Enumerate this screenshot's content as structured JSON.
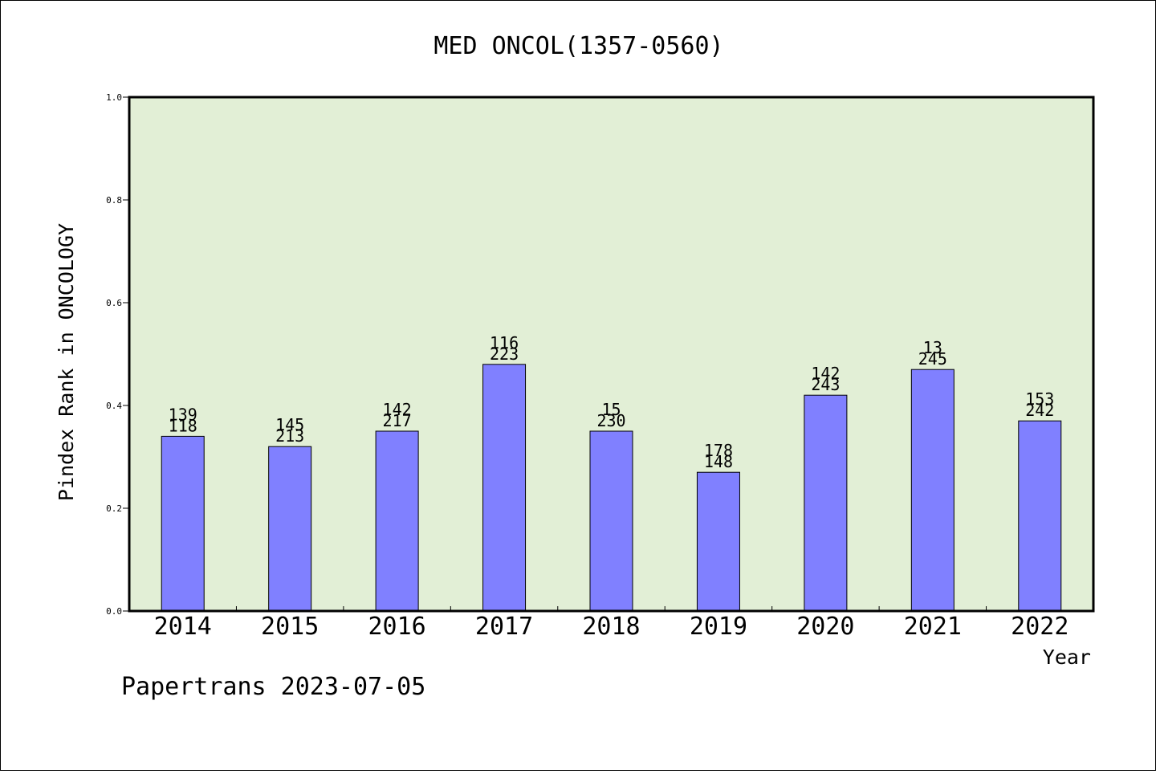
{
  "chart_data": {
    "type": "bar",
    "title": "MED ONCOL(1357-0560)",
    "xlabel": "Year",
    "ylabel": "Pindex Rank in ONCOLOGY",
    "ylim": [
      0.0,
      1.0
    ],
    "yticks": [
      "0.0",
      "0.2",
      "0.4",
      "0.6",
      "0.8",
      "1.0"
    ],
    "ytick_values": [
      0.0,
      0.2,
      0.4,
      0.6,
      0.8,
      1.0
    ],
    "categories": [
      "2014",
      "2015",
      "2016",
      "2017",
      "2018",
      "2019",
      "2020",
      "2021",
      "2022"
    ],
    "values": [
      0.34,
      0.32,
      0.35,
      0.48,
      0.35,
      0.27,
      0.42,
      0.47,
      0.37
    ],
    "label_top": [
      "139",
      "145",
      "142",
      "116",
      "15",
      "178",
      "142",
      "13",
      "153"
    ],
    "label_bottom": [
      "118",
      "213",
      "217",
      "223",
      "230",
      "148",
      "243",
      "245",
      "242"
    ],
    "grid": false,
    "legend": "none",
    "colors": {
      "bar": "#8080ff",
      "plot_background": "#e2efd6",
      "border": "#000000"
    }
  },
  "footer": {
    "credit": "Papertrans 2023-07-05"
  }
}
